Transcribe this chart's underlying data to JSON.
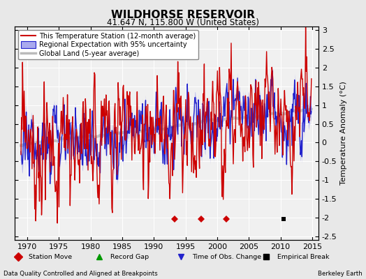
{
  "title": "WILDHORSE RESERVOIR",
  "subtitle": "41.647 N, 115.800 W (United States)",
  "ylabel": "Temperature Anomaly (°C)",
  "xlabel_left": "Data Quality Controlled and Aligned at Breakpoints",
  "xlabel_right": "Berkeley Earth",
  "xlim": [
    1968,
    2016
  ],
  "ylim": [
    -2.6,
    3.1
  ],
  "yticks": [
    -2.5,
    -2,
    -1.5,
    -1,
    -0.5,
    0,
    0.5,
    1,
    1.5,
    2,
    2.5,
    3
  ],
  "ytick_labels": [
    "-2.5",
    "-2",
    "-1.5",
    "-1",
    "-0.5",
    "0",
    "0.5",
    "1",
    "1.5",
    "2",
    "2.5",
    "3"
  ],
  "xticks": [
    1970,
    1975,
    1980,
    1985,
    1990,
    1995,
    2000,
    2005,
    2010,
    2015
  ],
  "station_moves": [
    1993.3,
    1997.5,
    2001.5
  ],
  "empirical_breaks": [
    2010.5
  ],
  "bg_color": "#e8e8e8",
  "plot_bg_color": "#f0f0f0",
  "red_color": "#cc0000",
  "blue_color": "#2222cc",
  "blue_fill_color": "#aaaaee",
  "gray_color": "#bbbbbb",
  "grid_color": "#ffffff",
  "legend_label_red": "This Temperature Station (12-month average)",
  "legend_label_blue": "Regional Expectation with 95% uncertainty",
  "legend_label_gray": "Global Land (5-year average)",
  "bottom_label1": "Station Move",
  "bottom_label2": "Record Gap",
  "bottom_label3": "Time of Obs. Change",
  "bottom_label4": "Empirical Break"
}
